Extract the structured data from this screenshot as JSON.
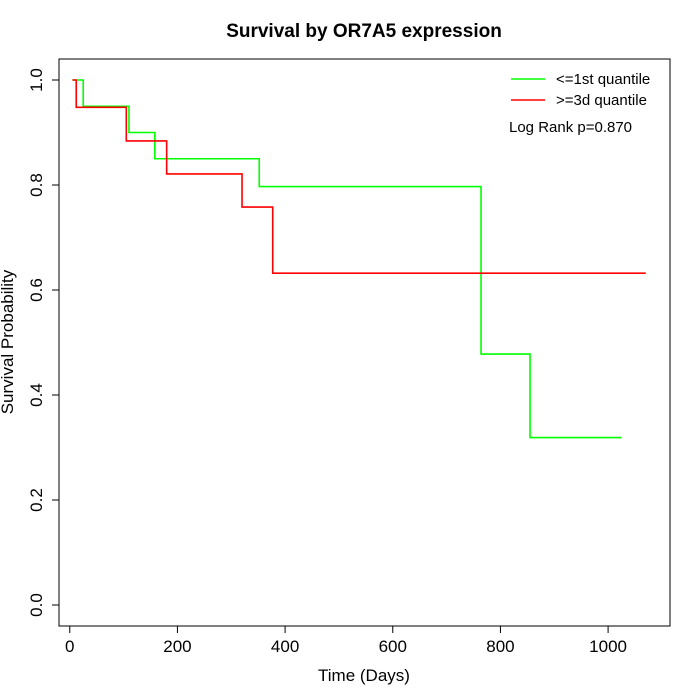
{
  "chart_data": {
    "type": "line",
    "title": "Survival by OR7A5 expression",
    "xlabel": "Time (Days)",
    "ylabel": "Survival Probability",
    "xlim": [
      -20,
      1115
    ],
    "ylim": [
      -0.04,
      1.04
    ],
    "x_ticks": [
      0,
      200,
      400,
      600,
      800,
      1000
    ],
    "y_ticks": [
      0.0,
      0.2,
      0.4,
      0.6,
      0.8,
      1.0
    ],
    "x_tick_labels": [
      "0",
      "200",
      "400",
      "600",
      "800",
      "1000"
    ],
    "y_tick_labels": [
      "0.0",
      "0.2",
      "0.4",
      "0.6",
      "0.8",
      "1.0"
    ],
    "grid": false,
    "legend_position": "top-right",
    "annotation": "Log Rank p=0.870",
    "series": [
      {
        "name": "<=1st quantile",
        "color": "#00ff00",
        "steps": [
          [
            5,
            1.0
          ],
          [
            25,
            0.95
          ],
          [
            110,
            0.9
          ],
          [
            158,
            0.85
          ],
          [
            352,
            0.797
          ],
          [
            764,
            0.478
          ],
          [
            855,
            0.319
          ],
          [
            1025,
            0.319
          ]
        ]
      },
      {
        "name": ">=3d quantile",
        "color": "#ff0000",
        "steps": [
          [
            5,
            1.0
          ],
          [
            12,
            0.948
          ],
          [
            105,
            0.884
          ],
          [
            180,
            0.821
          ],
          [
            320,
            0.758
          ],
          [
            377,
            0.632
          ],
          [
            1070,
            0.632
          ]
        ]
      }
    ]
  }
}
